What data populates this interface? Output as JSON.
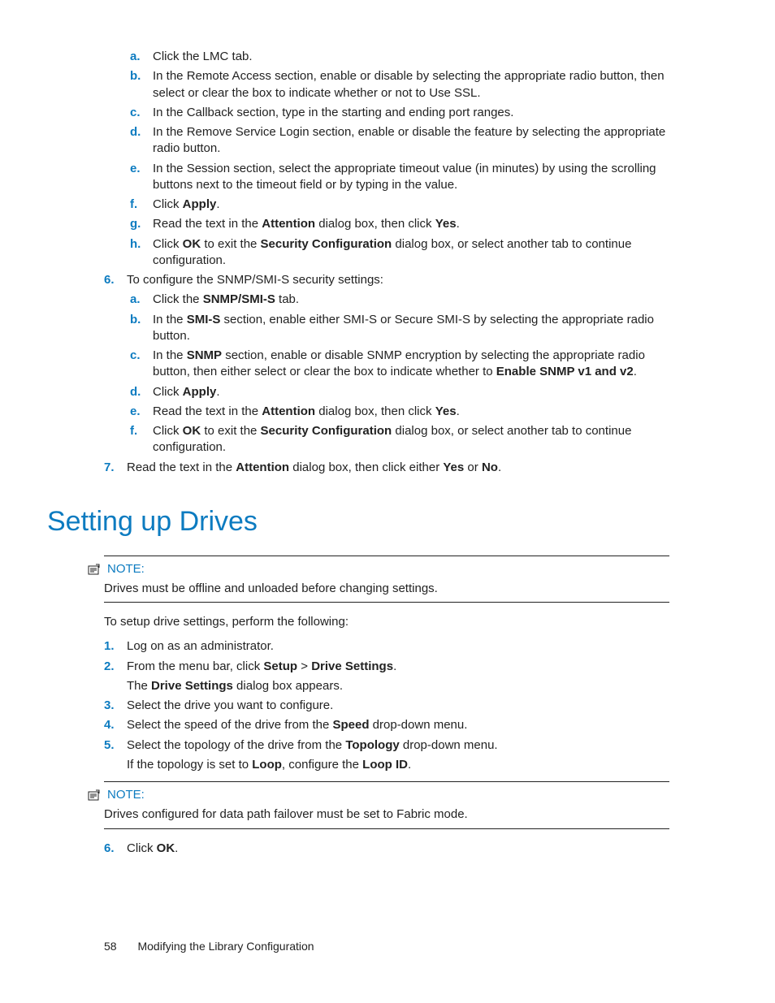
{
  "colors": {
    "accent": "#0c7bc0",
    "text": "#222222",
    "rule": "#222222"
  },
  "typography": {
    "body_size_pt": 11,
    "heading_size_pt": 26,
    "font_family": "Arial"
  },
  "list_alpha_1": [
    {
      "m": "a.",
      "t": "Click the LMC tab."
    },
    {
      "m": "b.",
      "t": "In the Remote Access section, enable or disable by selecting the appropriate radio button, then select or clear the box to indicate whether or not to Use SSL."
    },
    {
      "m": "c.",
      "t": "In the Callback section, type in the starting and ending port ranges."
    },
    {
      "m": "d.",
      "t": "In the Remove Service Login section, enable or disable the feature by selecting the appropriate radio button."
    },
    {
      "m": "e.",
      "t": "In the Session section, select the appropriate timeout value (in minutes) by using the scrolling buttons next to the timeout field or by typing in the value."
    },
    {
      "m": "f.",
      "t_html": "Click <span class=\"b\">Apply</span>."
    },
    {
      "m": "g.",
      "t_html": "Read the text in the <span class=\"b\">Attention</span> dialog box, then click <span class=\"b\">Yes</span>."
    },
    {
      "m": "h.",
      "t_html": "Click <span class=\"b\">OK</span> to exit the <span class=\"b\">Security Configuration</span> dialog box, or select another tab to continue configuration."
    }
  ],
  "num6_label": "6.",
  "num6_text": "To configure the SNMP/SMI-S security settings:",
  "list_alpha_2": [
    {
      "m": "a.",
      "t_html": "Click the <span class=\"b\">SNMP/SMI-S</span> tab."
    },
    {
      "m": "b.",
      "t_html": "In the <span class=\"b\">SMI-S</span> section, enable either SMI-S or Secure SMI-S by selecting the appropriate radio button."
    },
    {
      "m": "c.",
      "t_html": "In the <span class=\"b\">SNMP</span> section, enable or disable SNMP encryption by selecting the appropriate radio button, then either select or clear the box to indicate whether to <span class=\"b\">Enable SNMP v1 and v2</span>."
    },
    {
      "m": "d.",
      "t_html": "Click <span class=\"b\">Apply</span>."
    },
    {
      "m": "e.",
      "t_html": "Read the text in the <span class=\"b\">Attention</span> dialog box, then click <span class=\"b\">Yes</span>."
    },
    {
      "m": "f.",
      "t_html": "Click <span class=\"b\">OK</span> to exit the <span class=\"b\">Security Configuration</span> dialog box, or select another tab to continue configuration."
    }
  ],
  "num7_label": "7.",
  "num7_text_html": "Read the text in the <span class=\"b\">Attention</span> dialog box, then click either <span class=\"b\">Yes</span> or <span class=\"b\">No</span>.",
  "heading": "Setting up Drives",
  "note1": {
    "title": "NOTE:",
    "body": "Drives must be offline and unloaded before changing settings."
  },
  "intro": "To setup drive settings, perform the following:",
  "list_num_1": [
    {
      "m": "1.",
      "t": "Log on as an administrator."
    },
    {
      "m": "2.",
      "t_html": "From the menu bar, click <span class=\"b\">Setup</span> &gt; <span class=\"b\">Drive Settings</span>.",
      "sub_html": "The <span class=\"b\">Drive Settings</span> dialog box appears."
    },
    {
      "m": "3.",
      "t": "Select the drive you want to configure."
    },
    {
      "m": "4.",
      "t_html": "Select the speed of the drive from the <span class=\"b\">Speed</span> drop-down menu."
    },
    {
      "m": "5.",
      "t_html": "Select the topology of the drive from the <span class=\"b\">Topology</span> drop-down menu.",
      "sub_html": "If the topology is set to <span class=\"b\">Loop</span>, configure the <span class=\"b\">Loop ID</span>."
    }
  ],
  "note2": {
    "title": "NOTE:",
    "body": "Drives configured for data path failover must be set to Fabric mode."
  },
  "num6b_label": "6.",
  "num6b_text_html": "Click <span class=\"b\">OK</span>.",
  "footer": {
    "page": "58",
    "chapter": "Modifying the Library Configuration"
  }
}
